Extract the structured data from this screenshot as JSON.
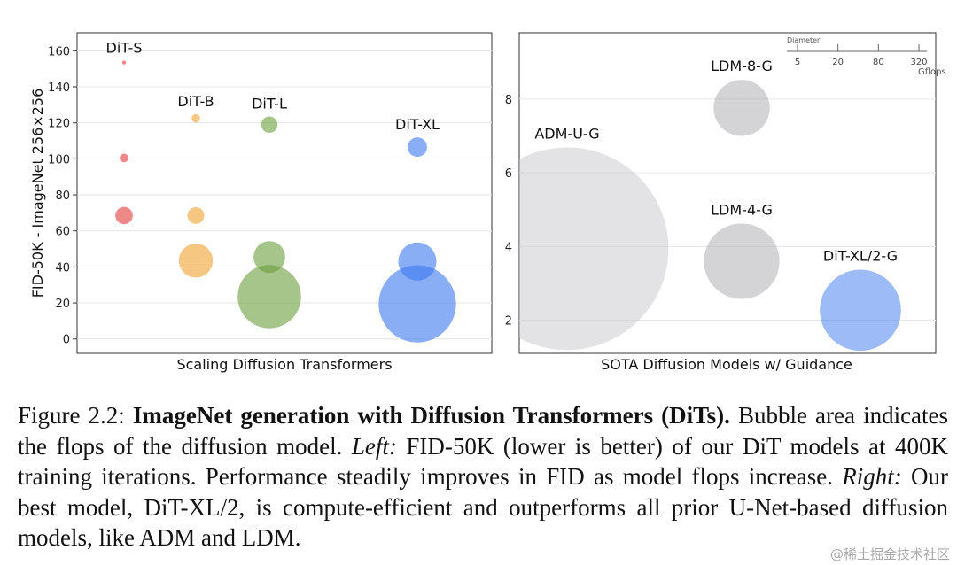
{
  "chart_data": [
    {
      "type": "scatter",
      "subtype": "bubble",
      "xlabel": "Scaling Diffusion Transformers",
      "ylabel": "FID-50K - ImageNet 256×256",
      "ylim": [
        -8,
        170
      ],
      "yticks": [
        0,
        20,
        40,
        60,
        80,
        100,
        120,
        140,
        160
      ],
      "grid": true,
      "series": [
        {
          "name": "DiT-S",
          "color": "#e23b3b",
          "points": [
            {
              "fid": 153.5,
              "gflops": 0.3
            },
            {
              "fid": 100.5,
              "gflops": 1.5
            },
            {
              "fid": 68.5,
              "gflops": 6
            }
          ]
        },
        {
          "name": "DiT-B",
          "color": "#f0a030",
          "points": [
            {
              "fid": 122.5,
              "gflops": 1.4
            },
            {
              "fid": 68.5,
              "gflops": 5.6
            },
            {
              "fid": 43.5,
              "gflops": 23
            }
          ]
        },
        {
          "name": "DiT-L",
          "color": "#6b9e3c",
          "points": [
            {
              "fid": 119.0,
              "gflops": 5.3
            },
            {
              "fid": 45.5,
              "gflops": 20
            },
            {
              "fid": 23.5,
              "gflops": 80
            }
          ]
        },
        {
          "name": "DiT-XL",
          "color": "#3c78f0",
          "points": [
            {
              "fid": 106.5,
              "gflops": 7.5
            },
            {
              "fid": 43.0,
              "gflops": 29
            },
            {
              "fid": 19.5,
              "gflops": 119
            }
          ]
        }
      ]
    },
    {
      "type": "scatter",
      "subtype": "bubble",
      "xlabel": "SOTA Diffusion Models w/ Guidance",
      "ylim": [
        1.1,
        9.8
      ],
      "yticks": [
        2,
        4,
        6,
        8
      ],
      "grid": true,
      "points": [
        {
          "name": "ADM-U-G",
          "fid": 3.94,
          "gflops": 742,
          "color": "#c8c8cc"
        },
        {
          "name": "LDM-8-G",
          "fid": 7.76,
          "gflops": 57,
          "color": "#a9a9ad"
        },
        {
          "name": "LDM-4-G",
          "fid": 3.6,
          "gflops": 103,
          "color": "#a9a9ad"
        },
        {
          "name": "DiT-XL/2-G",
          "fid": 2.27,
          "gflops": 119,
          "color": "#3c78f0"
        }
      ],
      "size_legend": {
        "title": "Diameter",
        "unit": "Gflops",
        "ticks": [
          "5",
          "20",
          "80",
          "320"
        ]
      }
    }
  ],
  "caption": {
    "label": "Figure 2.2:",
    "title": "ImageNet generation with Diffusion Transformers (DiTs).",
    "text1": "Bubble area indicates the flops of the diffusion model.",
    "left_label": "Left:",
    "text2": "FID-50K (lower is better) of our DiT models at 400K training iterations. Performance steadily improves in FID as model flops increase.",
    "right_label": "Right:",
    "text3": "Our best model, DiT-XL/2, is compute-efficient and outperforms all prior U-Net-based diffusion models, like ADM and LDM."
  },
  "watermark": "@稀土掘金技术社区"
}
